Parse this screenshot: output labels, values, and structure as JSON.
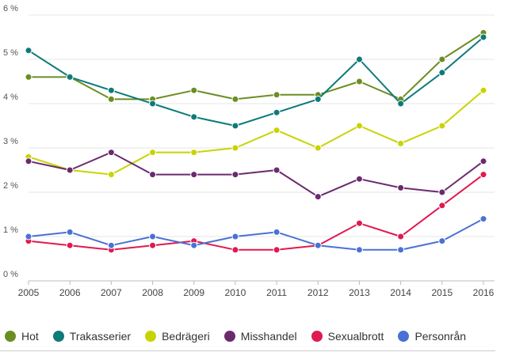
{
  "chart_data": {
    "type": "line",
    "categories": [
      "2005",
      "2006",
      "2007",
      "2008",
      "2009",
      "2010",
      "2011",
      "2012",
      "2013",
      "2014",
      "2015",
      "2016"
    ],
    "y_ticks": [
      "0 %",
      "1 %",
      "2 %",
      "3 %",
      "4 %",
      "5 %",
      "6 %"
    ],
    "ylim": [
      0,
      6
    ],
    "grid": true,
    "legend_position": "bottom",
    "series": [
      {
        "name": "Hot",
        "color": "#6b8e23",
        "values": [
          4.6,
          4.6,
          4.1,
          4.1,
          4.3,
          4.1,
          4.2,
          4.2,
          4.5,
          4.1,
          5.0,
          5.6
        ]
      },
      {
        "name": "Trakasserier",
        "color": "#0e7a7a",
        "values": [
          5.2,
          4.6,
          4.3,
          4.0,
          3.7,
          3.5,
          3.8,
          4.1,
          5.0,
          4.0,
          4.7,
          5.5
        ]
      },
      {
        "name": "Bedrägeri",
        "color": "#c8d400",
        "values": [
          2.8,
          2.5,
          2.4,
          2.9,
          2.9,
          3.0,
          3.4,
          3.0,
          3.5,
          3.1,
          3.5,
          4.3
        ]
      },
      {
        "name": "Misshandel",
        "color": "#6b2a6e",
        "values": [
          2.7,
          2.5,
          2.9,
          2.4,
          2.4,
          2.4,
          2.5,
          1.9,
          2.3,
          2.1,
          2.0,
          2.7
        ]
      },
      {
        "name": "Sexualbrott",
        "color": "#e0194f",
        "values": [
          0.9,
          0.8,
          0.7,
          0.8,
          0.9,
          0.7,
          0.7,
          0.8,
          1.3,
          1.0,
          1.7,
          2.4
        ]
      },
      {
        "name": "Personrån",
        "color": "#4a72d4",
        "values": [
          1.0,
          1.1,
          0.8,
          1.0,
          0.8,
          1.0,
          1.1,
          0.8,
          0.7,
          0.7,
          0.9,
          1.4
        ]
      }
    ]
  }
}
